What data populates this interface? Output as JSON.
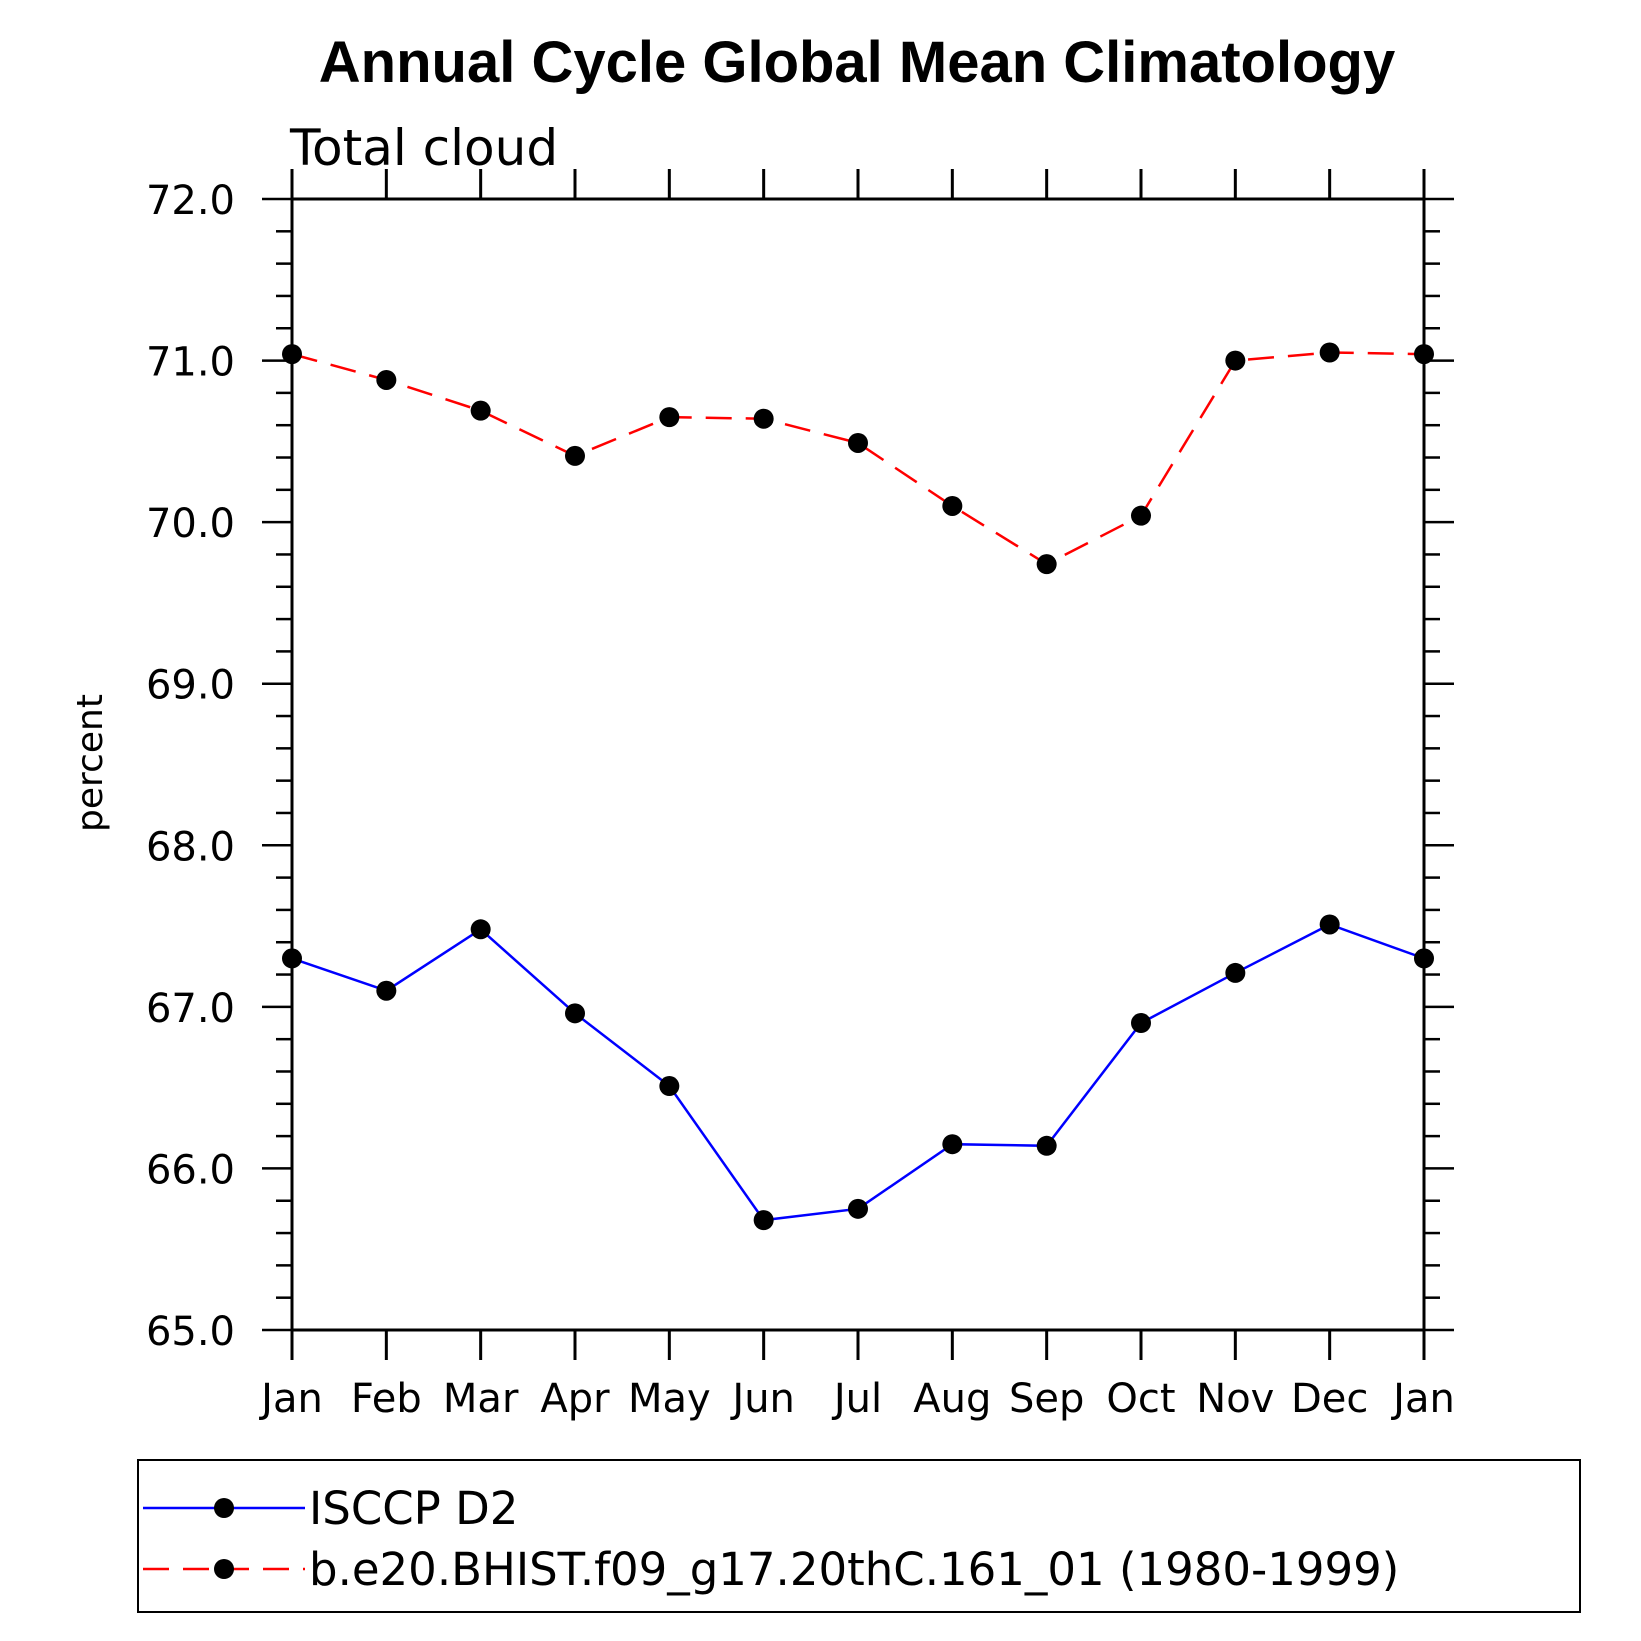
{
  "chart_data": {
    "type": "line",
    "title": "Annual Cycle Global Mean Climatology",
    "subtitle": "Total cloud",
    "ylabel": "percent",
    "xlabel": "",
    "categories": [
      "Jan",
      "Feb",
      "Mar",
      "Apr",
      "May",
      "Jun",
      "Jul",
      "Aug",
      "Sep",
      "Oct",
      "Nov",
      "Dec",
      "Jan"
    ],
    "ylim": [
      65.0,
      72.0
    ],
    "y_ticks": [
      "65.0",
      "66.0",
      "67.0",
      "68.0",
      "69.0",
      "70.0",
      "71.0",
      "72.0"
    ],
    "grid": false,
    "legend_position": "bottom",
    "series": [
      {
        "name": "ISCCP D2",
        "color": "#0000ff",
        "line_style": "solid",
        "marker": "filled-circle",
        "values": [
          67.3,
          67.1,
          67.48,
          66.96,
          66.51,
          65.68,
          65.75,
          66.15,
          66.14,
          66.9,
          67.21,
          67.51,
          67.3
        ]
      },
      {
        "name": "b.e20.BHIST.f09_g17.20thC.161_01 (1980-1999)",
        "color": "#ff0000",
        "line_style": "dashed",
        "marker": "filled-circle",
        "values": [
          71.04,
          70.88,
          70.69,
          70.41,
          70.65,
          70.64,
          70.49,
          70.1,
          69.74,
          70.04,
          71.0,
          71.05,
          71.04
        ]
      }
    ]
  }
}
